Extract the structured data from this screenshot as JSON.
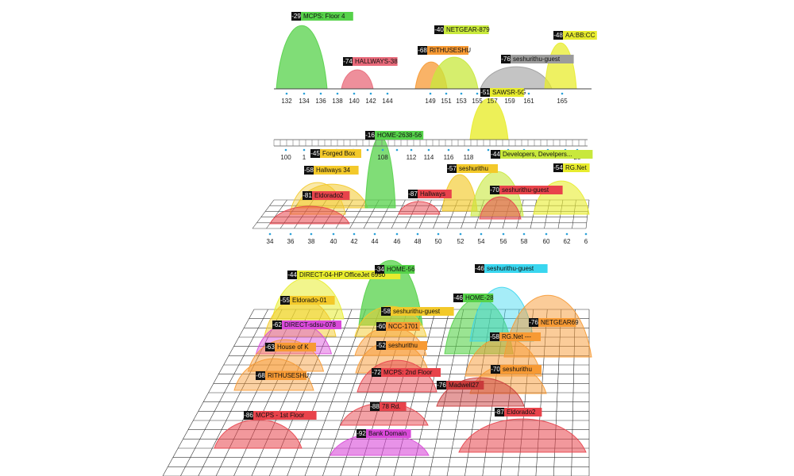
{
  "colors": {
    "green": "#56d24a",
    "lime": "#c8e83c",
    "yellow": "#e8ec2e",
    "gold": "#f3c92a",
    "orange": "#f79a34",
    "red": "#e8434b",
    "pink": "#e86a7a",
    "magenta": "#d94ad9",
    "cyan": "#39d6ef",
    "gray": "#9c9c9c",
    "dark_red": "#c93a3a",
    "hot_pink": "#f04aa8"
  },
  "chart_data": [
    {
      "type": "area",
      "x_ticks": [
        "132",
        "134",
        "136",
        "138",
        "140",
        "142",
        "144",
        "149",
        "151",
        "153",
        "155",
        "157",
        "159",
        "161",
        "165"
      ],
      "series": [
        {
          "name": "MCPS: Floor 4",
          "signal": "-29",
          "color_key": "green",
          "channel": 134
        },
        {
          "name": "HALLWAYS-38",
          "signal": "-74",
          "color_key": "pink",
          "channel": 140
        },
        {
          "name": "NETGEAR-879",
          "signal": "-40",
          "color_key": "lime",
          "channel": 151
        },
        {
          "name": "RITHUSESHU",
          "signal": "-68",
          "color_key": "orange",
          "channel": 149
        },
        {
          "name": "seshurithu-guest",
          "signal": "-76",
          "color_key": "gray",
          "channel": 157
        },
        {
          "name": "AA:BB:CC",
          "signal": "-48",
          "color_key": "yellow",
          "channel": 165
        },
        {
          "name": "SAWSR-5G",
          "signal": "-51",
          "color_key": "yellow",
          "channel": 157
        }
      ]
    },
    {
      "type": "area",
      "x_ticks": [
        "100",
        "1",
        "",
        "",
        "",
        "",
        "108",
        "",
        "112",
        "114",
        "116",
        "118",
        "",
        "",
        "",
        "",
        "",
        "28"
      ],
      "series": [
        {
          "name": "HOME-2638-56",
          "signal": "-16",
          "color_key": "green",
          "channel": 44
        },
        {
          "name": "Forged Box",
          "signal": "-45",
          "color_key": "gold",
          "channel": 38
        },
        {
          "name": "Developers, Develpers...",
          "signal": "-44",
          "color_key": "lime",
          "channel": 56
        }
      ]
    },
    {
      "type": "area",
      "x_ticks": [
        "34",
        "36",
        "38",
        "40",
        "42",
        "44",
        "46",
        "48",
        "50",
        "52",
        "54",
        "56",
        "58",
        "60",
        "62",
        "6"
      ],
      "series": [
        {
          "name": "Hallways 34",
          "signal": "-58",
          "color_key": "gold",
          "channel": 38
        },
        {
          "name": "seshurithu",
          "signal": "-57",
          "color_key": "gold",
          "channel": 52
        },
        {
          "name": "RG.Net",
          "signal": "-54",
          "color_key": "yellow",
          "channel": 62
        },
        {
          "name": "Eldorado2",
          "signal": "-81",
          "color_key": "red",
          "channel": 38
        },
        {
          "name": "Hallways",
          "signal": "-87",
          "color_key": "red",
          "channel": 48
        },
        {
          "name": "seshurithu-guest",
          "signal": "-70",
          "color_key": "red",
          "channel": 56
        }
      ]
    },
    {
      "type": "area",
      "x_ticks": [],
      "series": [
        {
          "name": "DIRECT-04-HP OfficeJet 6950",
          "signal": "-44",
          "color_key": "yellow"
        },
        {
          "name": "HOME-56",
          "signal": "-34",
          "color_key": "green"
        },
        {
          "name": "seshurithu-guest",
          "signal": "-46",
          "color_key": "cyan"
        },
        {
          "name": "Eldorado-01",
          "signal": "-55",
          "color_key": "gold"
        },
        {
          "name": "HOME-28",
          "signal": "-46",
          "color_key": "green"
        },
        {
          "name": "seshurithu-guest",
          "signal": "-58",
          "color_key": "gold"
        },
        {
          "name": "NETGEAR69",
          "signal": "-76",
          "color_key": "orange"
        },
        {
          "name": "DIRECT-sdsu-078",
          "signal": "-62",
          "color_key": "magenta"
        },
        {
          "name": "NCC-1701",
          "signal": "-60",
          "color_key": "orange"
        },
        {
          "name": "House of K",
          "signal": "-63",
          "color_key": "orange"
        },
        {
          "name": "seshurithu",
          "signal": "-52",
          "color_key": "orange"
        },
        {
          "name": "RG.Net ---",
          "signal": "-58",
          "color_key": "orange"
        },
        {
          "name": "RITHUSESHU",
          "signal": "-68",
          "color_key": "orange"
        },
        {
          "name": "seshurithu",
          "signal": "-70",
          "color_key": "orange"
        },
        {
          "name": "MCPS: 2nd Floor",
          "signal": "-72",
          "color_key": "red"
        },
        {
          "name": "Madwell27",
          "signal": "-76",
          "color_key": "dark_red"
        },
        {
          "name": "MCPS - 1st Floor",
          "signal": "-86",
          "color_key": "red"
        },
        {
          "name": "78 Rd.",
          "signal": "-88",
          "color_key": "red"
        },
        {
          "name": "Eldorado2",
          "signal": "-87",
          "color_key": "red"
        },
        {
          "name": "Bank Domain",
          "signal": "-92",
          "color_key": "magenta"
        }
      ]
    }
  ]
}
